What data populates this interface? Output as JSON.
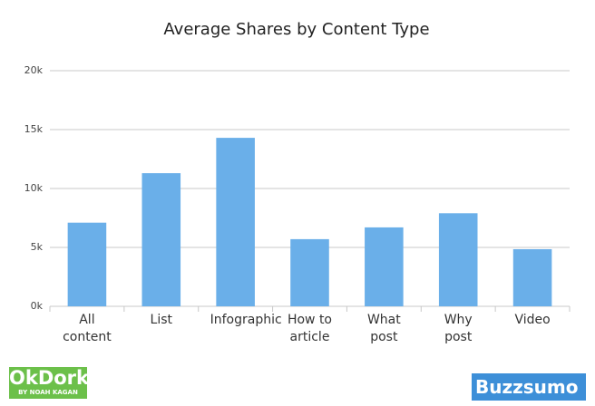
{
  "chart_data": {
    "type": "bar",
    "title": "Average Shares by Content Type",
    "categories": [
      "All content",
      "List",
      "Infographic",
      "How to article",
      "What post",
      "Why post",
      "Video"
    ],
    "values": [
      7100,
      11300,
      14300,
      5700,
      6700,
      7900,
      4850
    ],
    "color": "#6aafe9",
    "ylim": [
      0,
      20000
    ],
    "yticks": [
      {
        "value": 0,
        "label": "0k"
      },
      {
        "value": 5000,
        "label": "5k"
      },
      {
        "value": 10000,
        "label": "10k"
      },
      {
        "value": 15000,
        "label": "15k"
      },
      {
        "value": 20000,
        "label": "20k"
      }
    ],
    "grid": true
  },
  "logos": {
    "left": "OkDork",
    "left_sub": "BY NOAH KAGAN",
    "right": "Buzzsumo"
  }
}
